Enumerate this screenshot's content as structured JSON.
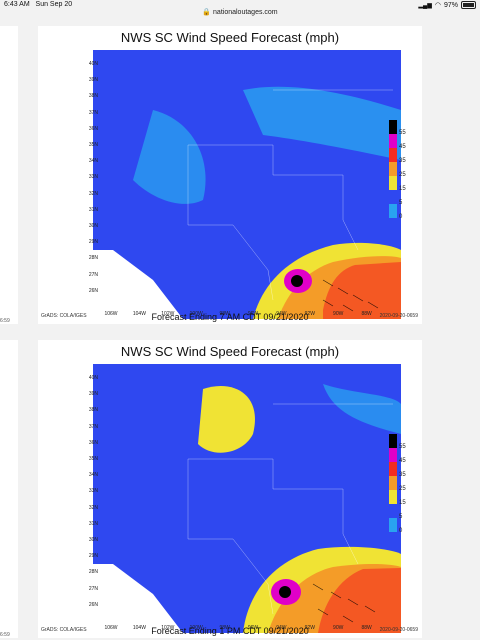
{
  "status": {
    "time": "6:43 AM",
    "date": "Sun Sep 20",
    "url": "nationaloutages.com",
    "battery": "97%",
    "battery_level": 0.97
  },
  "colors": {
    "blue": "#2f48f0",
    "cyan": "#29a3f0",
    "yellow": "#f0e334",
    "orange": "#f49c28",
    "red": "#f42c20",
    "magenta": "#e000c8",
    "black": "#000000"
  },
  "legend": {
    "labels": [
      "55",
      "45",
      "35",
      "25",
      "15",
      "5",
      "0"
    ],
    "bands": [
      "#000000",
      "#e000c8",
      "#f42c20",
      "#f49c28",
      "#f0e334",
      "#2f48f0",
      "#29a3f0"
    ]
  },
  "panels": [
    {
      "title": "NWS SC Wind Speed Forecast (mph)",
      "footer": "Forecast Ending 7 AM CDT 09/21/2020",
      "grads": "GrADS: COLA/IGES",
      "stamp": "2020-09-20-0659",
      "y_ticks": [
        "40N",
        "39N",
        "38N",
        "37N",
        "36N",
        "35N",
        "34N",
        "33N",
        "32N",
        "31N",
        "30N",
        "29N",
        "28N",
        "27N",
        "26N"
      ],
      "x_ticks": [
        "106W",
        "104W",
        "102W",
        "100W",
        "98W",
        "96W",
        "94W",
        "92W",
        "90W",
        "88W"
      ]
    },
    {
      "title": "NWS SC Wind Speed Forecast (mph)",
      "footer": "Forecast Ending 1 PM CDT 09/21/2020",
      "grads": "GrADS: COLA/IGES",
      "stamp": "2020-09-20-0659",
      "y_ticks": [
        "40N",
        "39N",
        "38N",
        "37N",
        "36N",
        "35N",
        "34N",
        "33N",
        "32N",
        "31N",
        "30N",
        "29N",
        "28N",
        "27N",
        "26N"
      ],
      "x_ticks": [
        "106W",
        "104W",
        "102W",
        "100W",
        "98W",
        "96W",
        "94W",
        "92W",
        "90W",
        "88W"
      ]
    }
  ],
  "edge_text": "6:59"
}
